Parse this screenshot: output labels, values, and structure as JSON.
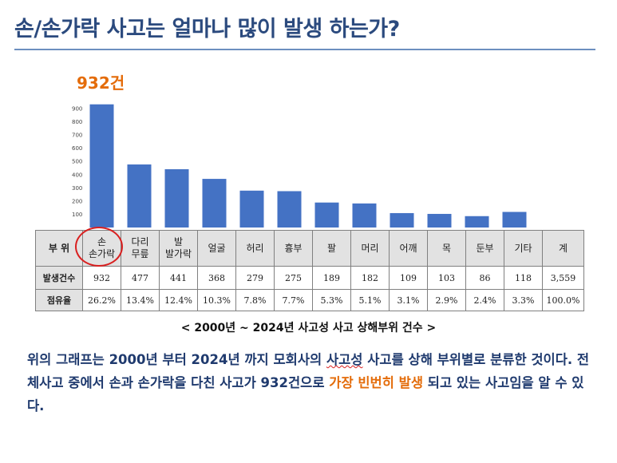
{
  "title": "손/손가락 사고는 얼마나 많이 발생 하는가?",
  "callout": "932건",
  "caption": "< 2000년 ~ 2024년 사고성 사고 상해부위 건수 >",
  "paragraph": {
    "part1": "위의 그래프는 2000년 부터 2024년 까지 모회사의 ",
    "wavy": "사고성",
    "part2": " 사고를 상해 부위별로 분류한 것이다. 전체사고 중에서 손과 손가락을 다친 사고가 932건으로 ",
    "highlight": "가장 빈번히 발생",
    "part3": " 되고 있는 사고임을 알 수 있다."
  },
  "colors": {
    "bar": "#4472c4",
    "title": "#2b4a7e",
    "accent": "#e46c0a",
    "circle": "#d92020"
  },
  "table": {
    "row_headers": [
      "부 위",
      "발생건수",
      "점유율"
    ],
    "columns": [
      {
        "part": [
          "손",
          "손가락"
        ],
        "count": "932",
        "share": "26.2%"
      },
      {
        "part": [
          "다리",
          "무릎"
        ],
        "count": "477",
        "share": "13.4%"
      },
      {
        "part": [
          "발",
          "발가락"
        ],
        "count": "441",
        "share": "12.4%"
      },
      {
        "part": [
          "얼굴"
        ],
        "count": "368",
        "share": "10.3%"
      },
      {
        "part": [
          "허리"
        ],
        "count": "279",
        "share": "7.8%"
      },
      {
        "part": [
          "흉부"
        ],
        "count": "275",
        "share": "7.7%"
      },
      {
        "part": [
          "팔"
        ],
        "count": "189",
        "share": "5.3%"
      },
      {
        "part": [
          "머리"
        ],
        "count": "182",
        "share": "5.1%"
      },
      {
        "part": [
          "어깨"
        ],
        "count": "109",
        "share": "3.1%"
      },
      {
        "part": [
          "목"
        ],
        "count": "103",
        "share": "2.9%"
      },
      {
        "part": [
          "둔부"
        ],
        "count": "86",
        "share": "2.4%"
      },
      {
        "part": [
          "기타"
        ],
        "count": "118",
        "share": "3.3%"
      },
      {
        "part": [
          "계"
        ],
        "count": "3,559",
        "share": "100.0%"
      }
    ]
  },
  "chart_data": {
    "type": "bar",
    "categories": [
      "손/손가락",
      "다리/무릎",
      "발/발가락",
      "얼굴",
      "허리",
      "흉부",
      "팔",
      "머리",
      "어깨",
      "목",
      "둔부",
      "기타"
    ],
    "values": [
      932,
      477,
      441,
      368,
      279,
      275,
      189,
      182,
      109,
      103,
      86,
      118
    ],
    "yticks": [
      "100",
      "200",
      "300",
      "400",
      "500",
      "600",
      "700",
      "800",
      "900"
    ],
    "ylim": [
      0,
      900
    ],
    "grid": false,
    "legend": "none"
  }
}
